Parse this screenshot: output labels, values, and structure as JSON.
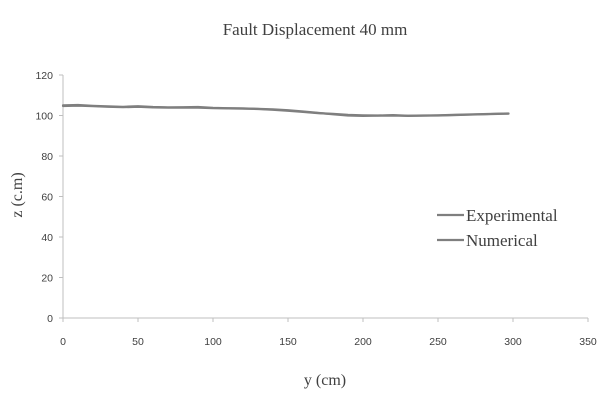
{
  "chart_data": {
    "type": "line",
    "title": "Fault Displacement 40 mm",
    "xlabel": "y (cm)",
    "ylabel": "z (c.m)",
    "xlim": [
      0,
      350
    ],
    "ylim": [
      0,
      120
    ],
    "xticks": [
      0,
      50,
      100,
      150,
      200,
      250,
      300,
      350
    ],
    "yticks": [
      0,
      20,
      40,
      60,
      80,
      100,
      120
    ],
    "grid": false,
    "legend_position": "right",
    "series": [
      {
        "name": "Experimental",
        "color": "#7f7f7f",
        "points": [
          [
            0,
            105
          ],
          [
            10,
            105.2
          ],
          [
            20,
            104.8
          ],
          [
            30,
            104.5
          ],
          [
            40,
            104.3
          ],
          [
            50,
            104.6
          ],
          [
            60,
            104.2
          ],
          [
            70,
            104.0
          ],
          [
            80,
            104.1
          ],
          [
            90,
            104.2
          ],
          [
            100,
            103.8
          ],
          [
            110,
            103.6
          ],
          [
            120,
            103.5
          ],
          [
            130,
            103.2
          ],
          [
            140,
            102.8
          ],
          [
            150,
            102.3
          ],
          [
            160,
            101.8
          ],
          [
            170,
            101.2
          ],
          [
            180,
            100.8
          ],
          [
            190,
            100.3
          ],
          [
            200,
            100.1
          ],
          [
            210,
            100.0
          ],
          [
            220,
            100.2
          ],
          [
            230,
            99.9
          ],
          [
            240,
            100.0
          ],
          [
            250,
            100.1
          ],
          [
            260,
            100.3
          ],
          [
            270,
            100.5
          ],
          [
            280,
            100.7
          ],
          [
            290,
            100.9
          ],
          [
            297,
            101.0
          ]
        ]
      },
      {
        "name": "Numerical",
        "color": "#7f7f7f",
        "points": [
          [
            0,
            104.7
          ],
          [
            10,
            104.9
          ],
          [
            20,
            104.6
          ],
          [
            30,
            104.3
          ],
          [
            40,
            104.1
          ],
          [
            50,
            104.3
          ],
          [
            60,
            104.0
          ],
          [
            70,
            103.9
          ],
          [
            80,
            103.9
          ],
          [
            90,
            103.9
          ],
          [
            100,
            103.6
          ],
          [
            110,
            103.5
          ],
          [
            120,
            103.4
          ],
          [
            130,
            103.3
          ],
          [
            140,
            103.0
          ],
          [
            150,
            102.6
          ],
          [
            160,
            102.0
          ],
          [
            170,
            101.3
          ],
          [
            180,
            100.6
          ],
          [
            190,
            100.0
          ],
          [
            200,
            99.8
          ],
          [
            210,
            99.9
          ],
          [
            220,
            100.0
          ],
          [
            230,
            99.8
          ],
          [
            240,
            99.9
          ],
          [
            250,
            100.0
          ],
          [
            260,
            100.2
          ],
          [
            270,
            100.4
          ],
          [
            280,
            100.6
          ],
          [
            290,
            100.8
          ],
          [
            297,
            100.9
          ]
        ]
      }
    ]
  }
}
